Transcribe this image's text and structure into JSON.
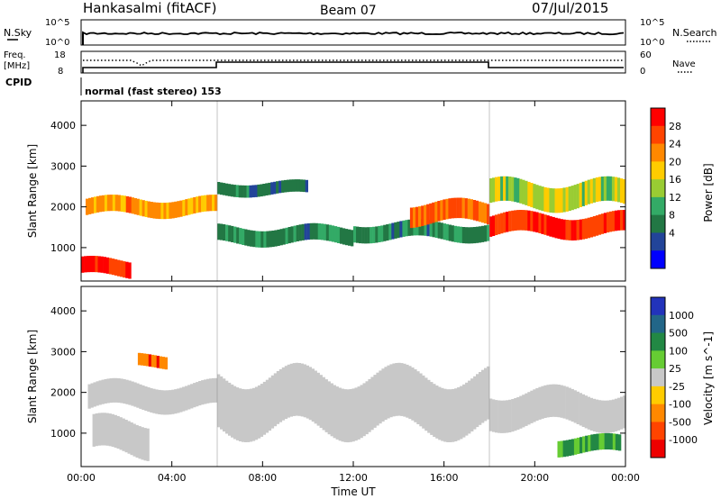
{
  "header": {
    "station": "Hankasalmi (fitACF)",
    "beam": "Beam 07",
    "date": "07/Jul/2015"
  },
  "top_panel": {
    "left_label": "N.Sky",
    "right_label": "N.Search",
    "left_ticks": [
      "10^5",
      "10^0"
    ],
    "right_ticks": [
      "10^5",
      "10^0"
    ]
  },
  "freq_panel": {
    "left_label_line1": "Freq.",
    "left_label_line2": "[MHz]",
    "right_label": "Nave",
    "left_ticks": [
      "18",
      "8"
    ],
    "right_ticks": [
      "60",
      "0"
    ]
  },
  "cpid": {
    "label": "CPID",
    "text": "normal (fast stereo) 153"
  },
  "axes": {
    "ylabel": "Slant Range [km]",
    "xlabel": "Time UT",
    "yticks": [
      "4000",
      "3000",
      "2000",
      "1000"
    ],
    "xticks": [
      "00:00",
      "04:00",
      "08:00",
      "12:00",
      "16:00",
      "20:00",
      "00:00"
    ]
  },
  "power_colorbar": {
    "label": "Power [dB]",
    "ticks": [
      "28",
      "24",
      "20",
      "16",
      "12",
      "8",
      "4"
    ],
    "colors": [
      "#ff0000",
      "#ff4400",
      "#ff8800",
      "#ffcc00",
      "#99cc33",
      "#33aa66",
      "#227744",
      "#224499",
      "#0000ff"
    ]
  },
  "velocity_colorbar": {
    "label": "Velocity [m s^-1]",
    "ticks": [
      "1000",
      "500",
      "100",
      "25",
      "-25",
      "-100",
      "-500",
      "-1000"
    ],
    "colors": [
      "#2233bb",
      "#226688",
      "#228844",
      "#66cc33",
      "#c8c8c8",
      "#ffcc00",
      "#ff8800",
      "#ff4400",
      "#ee0000"
    ]
  },
  "chart_data": {
    "type": "heatmap",
    "x_range_hours": [
      0,
      24
    ],
    "y_range_km": [
      180,
      4600
    ],
    "mode_change_hours": [
      6,
      18
    ],
    "power_echo_bands": [
      {
        "t0": 0.2,
        "t1": 6,
        "range_km": [
          1800,
          2200
        ],
        "power_db": 20
      },
      {
        "t0": 0,
        "t1": 2.2,
        "range_km": [
          300,
          700
        ],
        "power_db": 28
      },
      {
        "t0": 6,
        "t1": 12,
        "range_km": [
          1100,
          1500
        ],
        "power_db": 8
      },
      {
        "t0": 6,
        "t1": 10,
        "range_km": [
          2300,
          2600
        ],
        "power_db": 6
      },
      {
        "t0": 12,
        "t1": 18,
        "range_km": [
          1200,
          1600
        ],
        "power_db": 8
      },
      {
        "t0": 14.5,
        "t1": 18,
        "range_km": [
          1600,
          2100
        ],
        "power_db": 22
      },
      {
        "t0": 18,
        "t1": 24,
        "range_km": [
          1300,
          1800
        ],
        "power_db": 26
      },
      {
        "t0": 18,
        "t1": 24,
        "range_km": [
          2000,
          2600
        ],
        "power_db": 14
      }
    ],
    "velocity_echo_bands": [
      {
        "t0": 0.3,
        "t1": 6,
        "range_km": [
          1600,
          2200
        ],
        "velocity": 0
      },
      {
        "t0": 0.5,
        "t1": 3,
        "range_km": [
          500,
          1300
        ],
        "velocity": 0
      },
      {
        "t0": 2.5,
        "t1": 3.8,
        "range_km": [
          2600,
          2900
        ],
        "velocity": -500
      },
      {
        "t0": 6,
        "t1": 18,
        "range_km": [
          1100,
          2400
        ],
        "velocity": 0
      },
      {
        "t0": 18,
        "t1": 24,
        "range_km": [
          1200,
          2000
        ],
        "velocity": 0
      },
      {
        "t0": 21,
        "t1": 23.8,
        "range_km": [
          500,
          900
        ],
        "velocity": 100
      }
    ]
  }
}
